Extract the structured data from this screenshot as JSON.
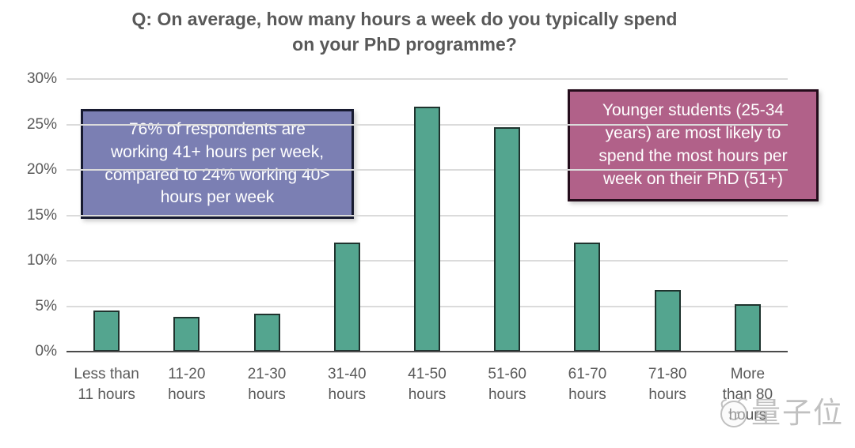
{
  "title": "Q: On average, how many hours a week do you typically spend\non your PhD programme?",
  "chart_data": {
    "type": "bar",
    "title": "Q: On average, how many hours a week do you typically spend on your PhD programme?",
    "categories": [
      "Less than\n11 hours",
      "11-20\nhours",
      "21-30\nhours",
      "31-40\nhours",
      "41-50\nhours",
      "51-60\nhours",
      "61-70\nhours",
      "71-80\nhours",
      "More\nthan 80\nhours"
    ],
    "values": [
      4.5,
      3.8,
      4.2,
      12,
      27,
      24.7,
      12,
      6.8,
      5.2
    ],
    "xlabel": "",
    "ylabel": "",
    "ylim": [
      0,
      30
    ],
    "yticks": [
      "0%",
      "5%",
      "10%",
      "15%",
      "20%",
      "25%",
      "30%"
    ],
    "grid": true,
    "legend": null,
    "bar_color": "#54a58f",
    "bar_border_color": "#1f332e"
  },
  "annotations": {
    "left_box": {
      "text": "76% of respondents are\nworking 41+ hours per week,\ncompared to 24% working 40>\nhours per week",
      "bg": "#7b7fb3",
      "border": "#171a30"
    },
    "right_box": {
      "text": "Younger students (25-34\nyears) are most likely to\nspend the most hours per\nweek on their PhD (51+)",
      "bg": "#b16189",
      "border": "#240c1b"
    }
  },
  "watermark": {
    "text": "量子位",
    "icon": "qbitai-face-icon"
  },
  "colors": {
    "title_text": "#595959",
    "axis_text": "#595959",
    "gridline": "#dbdbdb",
    "axis_line": "#4a4a4a",
    "background": "#ffffff"
  }
}
